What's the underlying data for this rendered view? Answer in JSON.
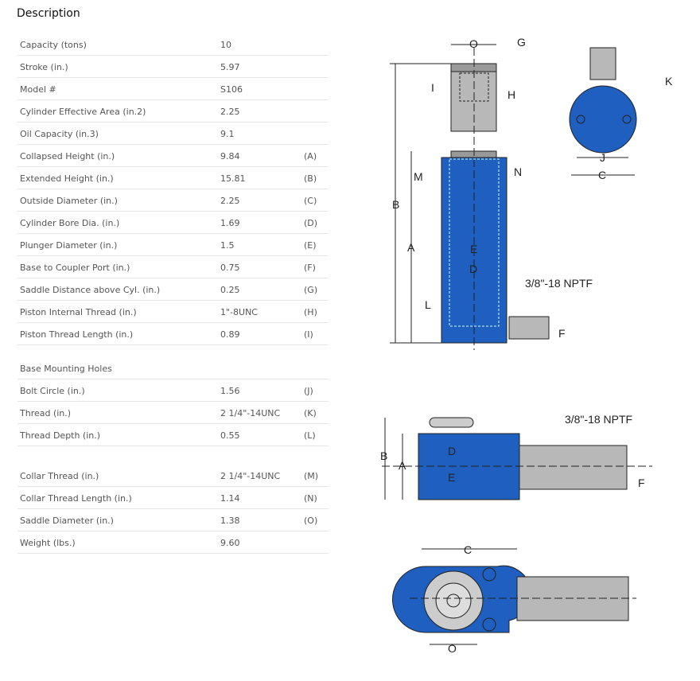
{
  "title": "Description",
  "specs": [
    {
      "label": "Capacity (tons)",
      "value": "10",
      "ref": ""
    },
    {
      "label": "Stroke (in.)",
      "value": "5.97",
      "ref": ""
    },
    {
      "label": "Model #",
      "value": "S106",
      "ref": ""
    },
    {
      "label": "Cylinder Effective Area (in.2)",
      "value": "2.25",
      "ref": ""
    },
    {
      "label": "Oil Capacity (in.3)",
      "value": "9.1",
      "ref": ""
    },
    {
      "label": "Collapsed Height (in.)",
      "value": "9.84",
      "ref": "(A)"
    },
    {
      "label": "Extended Height (in.)",
      "value": "15.81",
      "ref": "(B)"
    },
    {
      "label": "Outside Diameter (in.)",
      "value": "2.25",
      "ref": "(C)"
    },
    {
      "label": "Cylinder Bore Dia. (in.)",
      "value": "1.69",
      "ref": "(D)"
    },
    {
      "label": "Plunger Diameter (in.)",
      "value": "1.5",
      "ref": "(E)"
    },
    {
      "label": "Base to Coupler Port (in.)",
      "value": "0.75",
      "ref": "(F)"
    },
    {
      "label": "Saddle Distance above Cyl. (in.)",
      "value": "0.25",
      "ref": "(G)"
    },
    {
      "label": "Piston Internal Thread (in.)",
      "value": "1\"-8UNC",
      "ref": "(H)"
    },
    {
      "label": "Piston Thread Length (in.)",
      "value": "0.89",
      "ref": "(I)"
    }
  ],
  "mounting_header": "Base Mounting Holes",
  "mounting": [
    {
      "label": "Bolt Circle (in.)",
      "value": "1.56",
      "ref": "(J)"
    },
    {
      "label": "Thread (in.)",
      "value": "2 1/4\"-14UNC",
      "ref": "(K)"
    },
    {
      "label": "Thread Depth (in.)",
      "value": "0.55",
      "ref": "(L)"
    }
  ],
  "collar": [
    {
      "label": "Collar Thread (in.)",
      "value": "2 1/4\"-14UNC",
      "ref": "(M)"
    },
    {
      "label": "Collar Thread Length (in.)",
      "value": "1.14",
      "ref": "(N)"
    },
    {
      "label": "Saddle Diameter (in.)",
      "value": "1.38",
      "ref": "(O)"
    },
    {
      "label": "Weight (lbs.)",
      "value": "9.60",
      "ref": ""
    }
  ],
  "diagram": {
    "labels": {
      "O": "O",
      "G": "G",
      "I": "I",
      "H": "H",
      "K": "K",
      "J": "J",
      "C": "C",
      "M": "M",
      "N": "N",
      "B": "B",
      "A": "A",
      "E": "E",
      "D": "D",
      "L": "L",
      "F": "F"
    },
    "port": "3/8\"-18 NPTF",
    "colors": {
      "body": "#1f5fbf",
      "steel": "#b8b8b8"
    }
  }
}
